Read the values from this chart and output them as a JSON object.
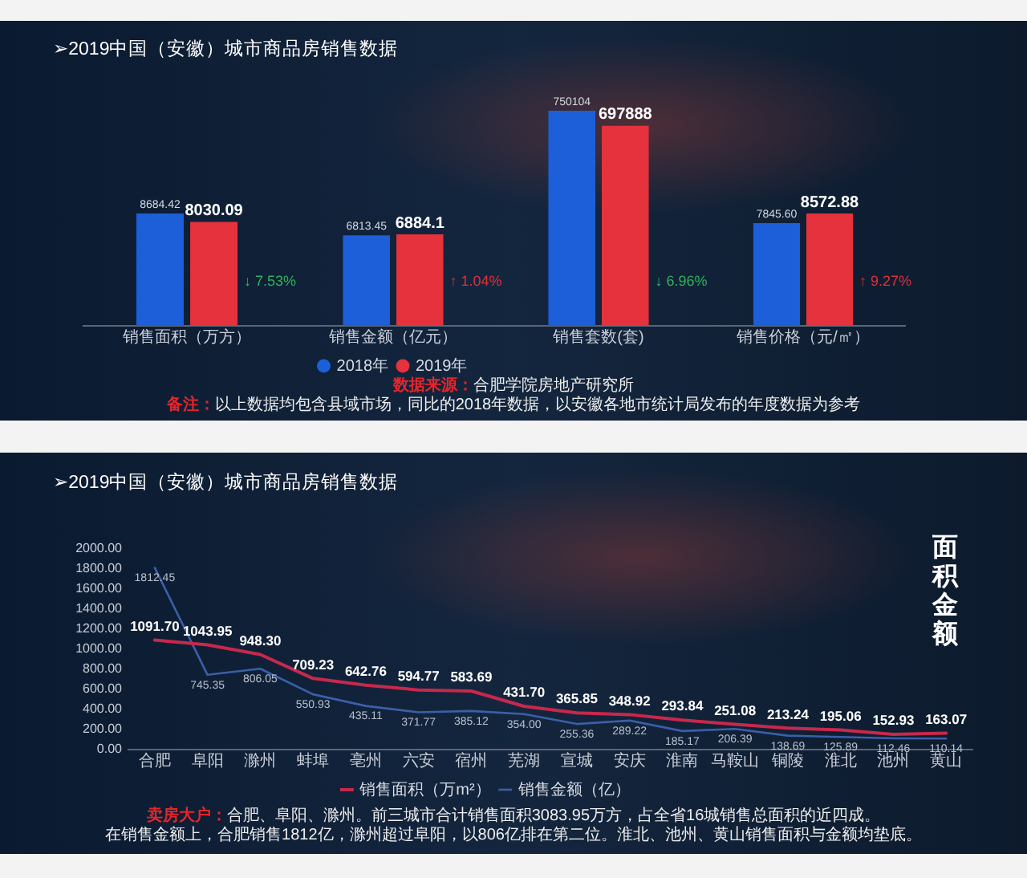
{
  "chart_data": [
    {
      "type": "bar",
      "title": "➢2019中国（安徽）城市商品房销售数据",
      "categories": [
        "销售面积（万方）"
      ],
      "series": [
        {
          "color": "#1c5fd8",
          "values": [
            8684.42
          ],
          "value_labels": [
            "8684.42"
          ]
        },
        {
          "color": "#e5323c",
          "values": [
            8030.09
          ],
          "value_labels": [
            "8030.09"
          ]
        }
      ],
      "tick_labels": "x",
      "annotations": [
        "↓ 7.53%"
      ]
    },
    {
      "type": "bar",
      "categories": [
        "销售金额（亿元）"
      ],
      "series": [
        {
          "name": "2018年",
          "color": "#1c5fd8",
          "values": [
            6813.45
          ],
          "value_labels": [
            "6813.45"
          ]
        },
        {
          "name": "2019年",
          "color": "#e5323c",
          "values": [
            6884.1
          ],
          "value_labels": [
            "6884.1"
          ]
        }
      ],
      "tick_labels": "x",
      "legend": "bottom",
      "annotations": [
        "↑ 1.04%"
      ]
    },
    {
      "type": "bar",
      "categories": [
        "销售套数(套)"
      ],
      "series": [
        {
          "color": "#1c5fd8",
          "values": [
            750104
          ],
          "value_labels": [
            "750104"
          ]
        },
        {
          "color": "#e5323c",
          "values": [
            697888
          ],
          "value_labels": [
            "697888"
          ]
        }
      ],
      "tick_labels": "x",
      "annotations": [
        "↓ 6.96%"
      ]
    },
    {
      "type": "bar",
      "categories": [
        "销售价格（元/㎡）"
      ],
      "series": [
        {
          "color": "#1c5fd8",
          "values": [
            7845.6
          ],
          "value_labels": [
            "7845.60"
          ]
        },
        {
          "color": "#e5323c",
          "values": [
            8572.88
          ],
          "value_labels": [
            "8572.88"
          ]
        }
      ],
      "tick_labels": "x",
      "annotations": [
        "↑ 9.27%"
      ]
    },
    {
      "type": "other",
      "annotations": [
        "数据来源：合肥学院房地产研究所",
        "备注：以上数据均包含县域市场，同比的2018年数据，以安徽各地市统计局发布的年度数据为参考"
      ]
    },
    {
      "type": "line",
      "title": "➢2019中国（安徽）城市商品房销售数据",
      "subtitle": "面积金额",
      "categories": [
        "合肥",
        "阜阳",
        "滁州",
        "蚌埠",
        "亳州",
        "六安",
        "宿州",
        "芜湖",
        "宣城",
        "安庆",
        "淮南",
        "马鞍山",
        "铜陵",
        "淮北",
        "池州",
        "黄山"
      ],
      "series": [
        {
          "name": "销售面积（万m²）",
          "color": "#c8284c",
          "values": [
            1091.7,
            1043.95,
            948.3,
            709.23,
            642.76,
            594.77,
            583.69,
            431.7,
            365.85,
            348.92,
            293.84,
            251.08,
            213.24,
            195.06,
            152.93,
            163.07
          ],
          "value_labels": [
            "1091.70",
            "1043.95",
            "948.30",
            "709.23",
            "642.76",
            "594.77",
            "583.69",
            "431.70",
            "365.85",
            "348.92",
            "293.84",
            "251.08",
            "213.24",
            "195.06",
            "152.93",
            "163.07"
          ]
        },
        {
          "name": "销售金额（亿）",
          "color": "#3b5fa8",
          "values": [
            1812.45,
            745.35,
            806.05,
            550.93,
            435.11,
            371.77,
            385.12,
            354,
            255.36,
            289.22,
            185.17,
            206.39,
            138.69,
            125.89,
            112.46,
            110.14
          ],
          "value_labels": [
            "1812.45",
            "745.35",
            "806.05",
            "550.93",
            "435.11",
            "371.77",
            "385.12",
            "354.00",
            "255.36",
            "289.22",
            "185.17",
            "206.39",
            "138.69",
            "125.89",
            "112.46",
            "110.14"
          ]
        }
      ],
      "ylim": [
        0,
        2000
      ],
      "yticks": [
        {
          "value": 0,
          "label": "0.00"
        },
        {
          "value": 200,
          "label": "200.00"
        },
        {
          "value": 400,
          "label": "400.00"
        },
        {
          "value": 600,
          "label": "600.00"
        },
        {
          "value": 800,
          "label": "800.00"
        },
        {
          "value": 1000,
          "label": "1000.00"
        },
        {
          "value": 1200,
          "label": "1200.00"
        },
        {
          "value": 1400,
          "label": "1400.00"
        },
        {
          "value": 1600,
          "label": "1600.00"
        },
        {
          "value": 1800,
          "label": "1800.00"
        },
        {
          "value": 2000,
          "label": "2000.00"
        }
      ],
      "legend": "bottom",
      "marker": "none",
      "annotations": [
        "卖房大户：合肥、阜阳、滁州。前三城市合计销售面积3083.95万方，占全省16城销售总面积的近四成。",
        "在销售金额上，合肥销售1812亿，滁州超过阜阳，以806亿排在第二位。淮北、池州、黄山销售面积与金额均垫底。"
      ]
    }
  ]
}
